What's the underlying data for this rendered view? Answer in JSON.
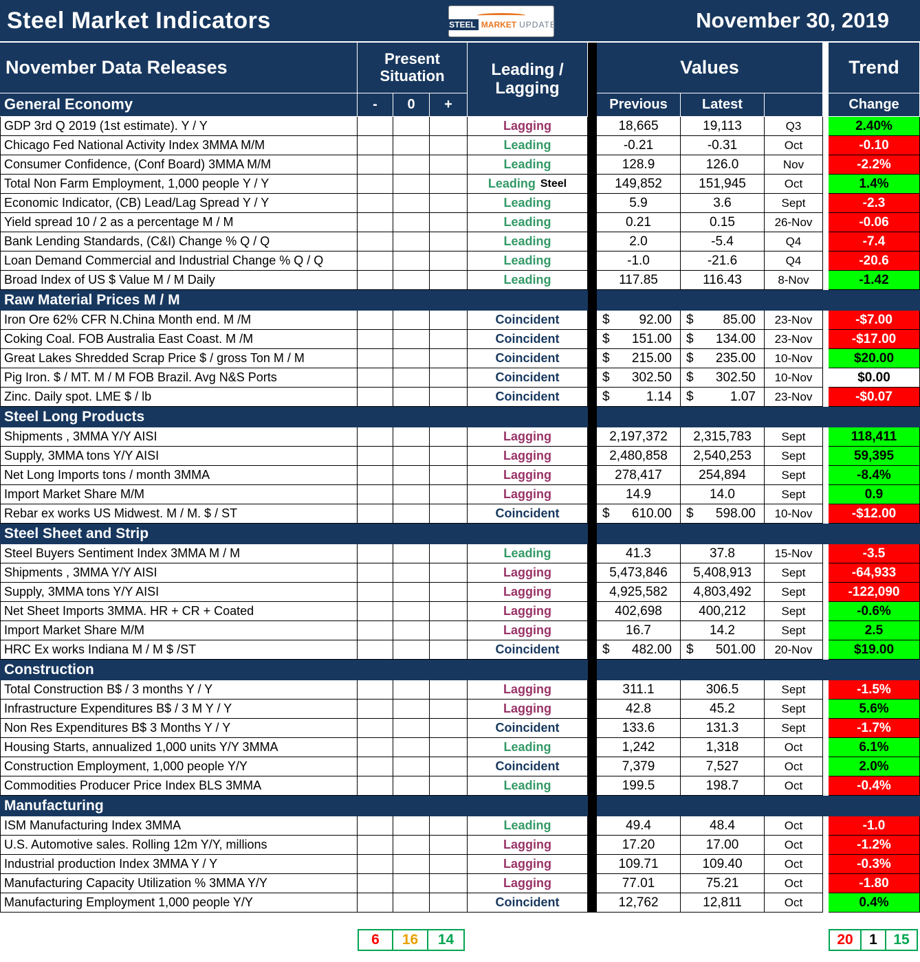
{
  "title": "Steel Market Indicators",
  "date": "November 30, 2019",
  "logo": {
    "word1": "STEEL",
    "word2": "MARKET",
    "word3": "UPDATE"
  },
  "header": {
    "releases": "November Data Releases",
    "present_situation": "Present Situation",
    "leading_lagging": "Leading / Lagging",
    "values": "Values",
    "trend": "Trend",
    "minus": "-",
    "zero": "0",
    "plus": "+",
    "previous": "Previous",
    "latest": "Latest",
    "change": "Change"
  },
  "sections": [
    {
      "name": "General Economy",
      "in_subheader": true,
      "rows": [
        {
          "label": "GDP 3rd Q 2019 (1st estimate). Y / Y",
          "sit": "zero",
          "cls": "Lagging",
          "prev": "18,665",
          "latest": "19,113",
          "period": "Q3",
          "change": "2.40%",
          "trend": "up"
        },
        {
          "label": "Chicago Fed National Activity Index 3MMA M/M",
          "sit": "zero",
          "cls": "Leading",
          "prev": "-0.21",
          "latest": "-0.31",
          "period": "Oct",
          "change": "-0.10",
          "trend": "down"
        },
        {
          "label": "Consumer Confidence, (Conf Board) 3MMA M/M",
          "sit": "plus",
          "cls": "Leading",
          "prev": "128.9",
          "latest": "126.0",
          "period": "Nov",
          "change": "-2.2%",
          "trend": "down"
        },
        {
          "label": "Total Non Farm Employment, 1,000 people Y / Y",
          "sit": "zero",
          "cls": "Leading",
          "cls_suffix": "Steel",
          "prev": "149,852",
          "latest": "151,945",
          "period": "Oct",
          "change": "1.4%",
          "trend": "up"
        },
        {
          "label": "Economic Indicator, (CB) Lead/Lag Spread Y / Y",
          "sit": "plus",
          "cls": "Leading",
          "prev": "5.9",
          "latest": "3.6",
          "period": "Sept",
          "change": "-2.3",
          "trend": "down"
        },
        {
          "label": "Yield spread 10 / 2 as a percentage M / M",
          "sit": "zero",
          "cls": "Leading",
          "prev": "0.21",
          "latest": "0.15",
          "period": "26-Nov",
          "change": "-0.06",
          "trend": "down"
        },
        {
          "label": "Bank Lending Standards, (C&I) Change % Q / Q",
          "sit": "zero",
          "cls": "Leading",
          "prev": "2.0",
          "latest": "-5.4",
          "period": "Q4",
          "change": "-7.4",
          "trend": "down"
        },
        {
          "label": "Loan Demand Commercial and Industrial Change % Q / Q",
          "sit": "minus",
          "cls": "Leading",
          "prev": "-1.0",
          "latest": "-21.6",
          "period": "Q4",
          "change": "-20.6",
          "trend": "down"
        },
        {
          "label": "Broad Index of US $ Value M / M Daily",
          "sit": "minus",
          "cls": "Leading",
          "prev": "117.85",
          "latest": "116.43",
          "period": "8-Nov",
          "change": "-1.42",
          "trend": "up"
        }
      ]
    },
    {
      "name": "Raw Material Prices M / M",
      "rows": [
        {
          "label": "Iron Ore 62% CFR N.China Month end. M /M",
          "sit": "zero",
          "cls": "Coincident",
          "dollar": true,
          "prev": "92.00",
          "latest": "85.00",
          "period": "23-Nov",
          "change": "-$7.00",
          "trend": "down"
        },
        {
          "label": "Coking Coal. FOB Australia East Coast. M /M",
          "sit": "minus",
          "cls": "Coincident",
          "dollar": true,
          "prev": "151.00",
          "latest": "134.00",
          "period": "23-Nov",
          "change": "-$17.00",
          "trend": "down"
        },
        {
          "label": "Great Lakes Shredded Scrap Price $ / gross Ton M / M",
          "sit": "minus",
          "cls": "Coincident",
          "dollar": true,
          "prev": "215.00",
          "latest": "235.00",
          "period": "10-Nov",
          "change": "$20.00",
          "trend": "up"
        },
        {
          "label": "Pig Iron. $ / MT. M / M FOB Brazil. Avg N&S Ports",
          "sit": "zero",
          "cls": "Coincident",
          "dollar": true,
          "prev": "302.50",
          "latest": "302.50",
          "period": "10-Nov",
          "change": "$0.00",
          "trend": "flat"
        },
        {
          "label": "Zinc. Daily spot. LME $ / lb",
          "sit": "plus",
          "cls": "Coincident",
          "dollar": true,
          "prev": "1.14",
          "latest": "1.07",
          "period": "23-Nov",
          "change": "-$0.07",
          "trend": "down"
        }
      ]
    },
    {
      "name": "Steel Long Products",
      "rows": [
        {
          "label": "Shipments , 3MMA Y/Y AISI",
          "sit": "plus",
          "cls": "Lagging",
          "prev": "2,197,372",
          "latest": "2,315,783",
          "period": "Sept",
          "change": "118,411",
          "trend": "up"
        },
        {
          "label": "Supply, 3MMA tons Y/Y AISI",
          "sit": "plus",
          "cls": "Lagging",
          "prev": "2,480,858",
          "latest": "2,540,253",
          "period": "Sept",
          "change": "59,395",
          "trend": "up"
        },
        {
          "label": "Net Long Imports tons / month 3MMA",
          "sit": "zero",
          "cls": "Lagging",
          "prev": "278,417",
          "latest": "254,894",
          "period": "Sept",
          "change": "-8.4%",
          "trend": "up"
        },
        {
          "label": "Import Market Share  M/M",
          "sit": "plus",
          "cls": "Lagging",
          "prev": "14.9",
          "latest": "14.0",
          "period": "Sept",
          "change": "0.9",
          "trend": "up"
        },
        {
          "label": "Rebar ex works US  Midwest. M / M. $ / ST",
          "sit": "zero",
          "cls": "Coincident",
          "dollar": true,
          "prev": "610.00",
          "latest": "598.00",
          "period": "10-Nov",
          "change": "-$12.00",
          "trend": "down"
        }
      ]
    },
    {
      "name": "Steel Sheet and Strip",
      "rows": [
        {
          "label": "Steel Buyers Sentiment Index 3MMA M / M",
          "sit": "plus",
          "cls": "Leading",
          "prev": "41.3",
          "latest": "37.8",
          "period": "15-Nov",
          "change": "-3.5",
          "trend": "down"
        },
        {
          "label": "Shipments , 3MMA Y/Y AISI",
          "sit": "plus",
          "cls": "Lagging",
          "prev": "5,473,846",
          "latest": "5,408,913",
          "period": "Sept",
          "change": "-64,933",
          "trend": "down"
        },
        {
          "label": "Supply, 3MMA tons Y/Y AISI",
          "sit": "zero",
          "cls": "Lagging",
          "prev": "4,925,582",
          "latest": "4,803,492",
          "period": "Sept",
          "change": "-122,090",
          "trend": "down"
        },
        {
          "label": "Net Sheet Imports  3MMA. HR + CR + Coated",
          "sit": "zero",
          "cls": "Lagging",
          "prev": "402,698",
          "latest": "400,212",
          "period": "Sept",
          "change": "-0.6%",
          "trend": "up"
        },
        {
          "label": "Import Market Share M/M",
          "sit": "plus",
          "cls": "Lagging",
          "prev": "16.7",
          "latest": "14.2",
          "period": "Sept",
          "change": "2.5",
          "trend": "up"
        },
        {
          "label": "HRC Ex works Indiana M / M $ /ST",
          "sit": "zero",
          "cls": "Coincident",
          "dollar": true,
          "prev": "482.00",
          "latest": "501.00",
          "period": "20-Nov",
          "change": "$19.00",
          "trend": "up"
        }
      ]
    },
    {
      "name": "Construction",
      "rows": [
        {
          "label": "Total Construction B$ /  3 months Y / Y",
          "sit": "plus",
          "cls": "Lagging",
          "prev": "311.1",
          "latest": "306.5",
          "period": "Sept",
          "change": "-1.5%",
          "trend": "down"
        },
        {
          "label": "Infrastructure Expenditures B$ / 3 M    Y / Y",
          "sit": "plus",
          "cls": "Lagging",
          "prev": "42.8",
          "latest": "45.2",
          "period": "Sept",
          "change": "5.6%",
          "trend": "up"
        },
        {
          "label": "Non Res Expenditures B$  3 Months   Y / Y",
          "sit": "plus",
          "cls": "Coincident",
          "prev": "133.6",
          "latest": "131.3",
          "period": "Sept",
          "change": "-1.7%",
          "trend": "down"
        },
        {
          "label": "Housing Starts, annualized 1,000 units Y/Y 3MMA",
          "sit": "minus",
          "cls": "Leading",
          "prev": "1,242",
          "latest": "1,318",
          "period": "Oct",
          "change": "6.1%",
          "trend": "up"
        },
        {
          "label": "Construction Employment, 1,000 people Y/Y",
          "sit": "zero",
          "cls": "Coincident",
          "prev": "7,379",
          "latest": "7,527",
          "period": "Oct",
          "change": "2.0%",
          "trend": "up"
        },
        {
          "label": "Commodities Producer Price Index BLS 3MMA",
          "sit": "zero",
          "cls": "Leading",
          "prev": "199.5",
          "latest": "198.7",
          "period": "Oct",
          "change": "-0.4%",
          "trend": "down"
        }
      ]
    },
    {
      "name": "Manufacturing",
      "rows": [
        {
          "label": "ISM Manufacturing Index 3MMA",
          "sit": "zero",
          "cls": "Leading",
          "prev": "49.4",
          "latest": "48.4",
          "period": "Oct",
          "change": "-1.0",
          "trend": "down"
        },
        {
          "label": "U.S. Automotive sales. Rolling 12m Y/Y, millions",
          "sit": "plus",
          "cls": "Lagging",
          "prev": "17.20",
          "latest": "17.00",
          "period": "Oct",
          "change": "-1.2%",
          "trend": "down"
        },
        {
          "label": "Industrial production Index 3MMA Y / Y",
          "sit": "plus",
          "cls": "Lagging",
          "prev": "109.71",
          "latest": "109.40",
          "period": "Oct",
          "change": "-0.3%",
          "trend": "down"
        },
        {
          "label": "Manufacturing Capacity Utilization % 3MMA Y/Y",
          "sit": "zero",
          "cls": "Lagging",
          "prev": "77.01",
          "latest": "75.21",
          "period": "Oct",
          "change": "-1.80",
          "trend": "down"
        },
        {
          "label": "Manufacturing Employment 1,000 people Y/Y",
          "sit": "minus",
          "cls": "Coincident",
          "prev": "12,762",
          "latest": "12,811",
          "period": "Oct",
          "change": "0.4%",
          "trend": "up"
        }
      ]
    }
  ],
  "footer": {
    "situation_counts": [
      {
        "value": "6",
        "color": "red"
      },
      {
        "value": "16",
        "color": "orange"
      },
      {
        "value": "14",
        "color": "green"
      }
    ],
    "trend_counts": [
      {
        "value": "20",
        "color": "red"
      },
      {
        "value": "1",
        "color": "black"
      },
      {
        "value": "15",
        "color": "green"
      }
    ]
  },
  "colors": {
    "navy": "#17375E",
    "red": "#FF0000",
    "amber": "#FFC000",
    "green": "#00FF00",
    "leading": "#339966",
    "lagging": "#993366",
    "coincident": "#17375E",
    "footer_border": "#00A550",
    "orange_count": "#E8A000",
    "logo_orange": "#E87722"
  }
}
